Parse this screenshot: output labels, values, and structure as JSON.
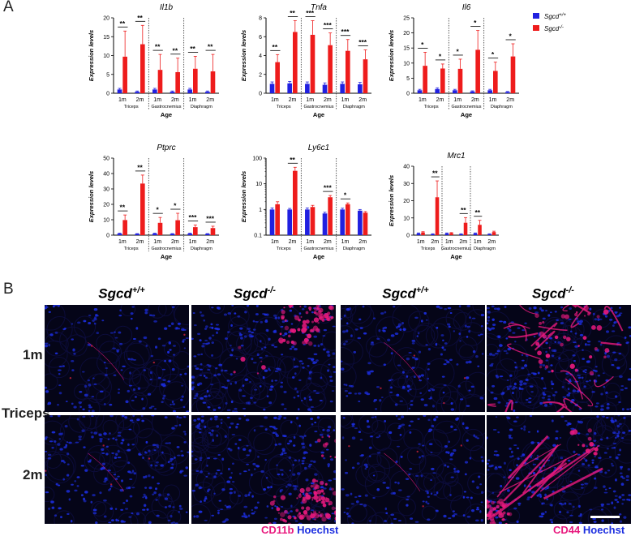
{
  "panel_a_letter": "A",
  "panel_b_letter": "B",
  "legend": {
    "control_gene": "Sgcd",
    "control_sup": "+/+",
    "control_color": "#2020e0",
    "mutant_gene": "Sgcd",
    "mutant_sup": "-/-",
    "mutant_color": "#ee1c1c"
  },
  "chart_data": [
    {
      "type": "bar",
      "title": "Il1b",
      "ylabel": "Expression levels",
      "xlabel": "Age",
      "scale": "linear",
      "ylim": [
        0,
        20
      ],
      "yticks": [
        "0",
        "5",
        "10",
        "15",
        "20"
      ],
      "ytick_values": [
        0,
        5,
        10,
        15,
        20
      ],
      "groups": [
        "Triceps",
        "Gastrocnemius",
        "Diaphragm"
      ],
      "categories": [
        "1m",
        "2m",
        "1m",
        "2m",
        "1m",
        "2m"
      ],
      "series": [
        {
          "name": "Sgcd+/+",
          "values": [
            1.0,
            0.4,
            1.0,
            0.4,
            1.0,
            0.4
          ],
          "errors": [
            0.3,
            0.2,
            0.3,
            0.2,
            0.3,
            0.2
          ]
        },
        {
          "name": "Sgcd-/-",
          "values": [
            9.7,
            13.0,
            6.2,
            5.6,
            6.5,
            5.8
          ],
          "errors": [
            6.8,
            5.0,
            4.1,
            3.7,
            3.3,
            4.5
          ]
        }
      ],
      "significance": [
        "**",
        "**",
        "**",
        "**",
        "**",
        "**"
      ]
    },
    {
      "type": "bar",
      "title": "Tnfa",
      "ylabel": "Expression levels",
      "xlabel": "Age",
      "scale": "linear",
      "ylim": [
        0,
        8
      ],
      "yticks": [
        "0",
        "2",
        "4",
        "6",
        "8"
      ],
      "ytick_values": [
        0,
        2,
        4,
        6,
        8
      ],
      "groups": [
        "Triceps",
        "Gastrocnemius",
        "Diaphragm"
      ],
      "categories": [
        "1m",
        "2m",
        "1m",
        "2m",
        "1m",
        "2m"
      ],
      "series": [
        {
          "name": "Sgcd+/+",
          "values": [
            1.0,
            1.05,
            1.0,
            0.9,
            1.0,
            0.95
          ],
          "errors": [
            0.2,
            0.2,
            0.2,
            0.2,
            0.2,
            0.2
          ]
        },
        {
          "name": "Sgcd-/-",
          "values": [
            3.3,
            6.5,
            6.2,
            5.1,
            4.5,
            3.6
          ],
          "errors": [
            0.8,
            1.2,
            1.5,
            1.3,
            1.2,
            1.0
          ]
        }
      ],
      "significance": [
        "**",
        "**",
        "***",
        "***",
        "***",
        "***"
      ]
    },
    {
      "type": "bar",
      "title": "Il6",
      "ylabel": "Expression levels",
      "xlabel": "Age",
      "scale": "linear",
      "ylim": [
        0,
        25
      ],
      "yticks": [
        "0",
        "5",
        "10",
        "15",
        "20",
        "25"
      ],
      "ytick_values": [
        0,
        5,
        10,
        15,
        20,
        25
      ],
      "groups": [
        "Triceps",
        "Gastrocnemius",
        "Diaphragm"
      ],
      "categories": [
        "1m",
        "2m",
        "1m",
        "2m",
        "1m",
        "2m"
      ],
      "series": [
        {
          "name": "Sgcd+/+",
          "values": [
            1.0,
            1.4,
            1.0,
            0.6,
            1.0,
            0.4
          ],
          "errors": [
            0.3,
            0.4,
            0.3,
            0.2,
            0.3,
            0.2
          ]
        },
        {
          "name": "Sgcd-/-",
          "values": [
            9.1,
            8.2,
            8.1,
            14.4,
            7.4,
            12.2
          ],
          "errors": [
            4.5,
            1.5,
            3.2,
            6.4,
            2.9,
            4.2
          ]
        }
      ],
      "significance": [
        "*",
        "*",
        "*",
        "*",
        "*",
        "*"
      ]
    },
    {
      "type": "bar",
      "title": "Ptprc",
      "ylabel": "Expression levels",
      "xlabel": "Age",
      "scale": "linear",
      "ylim": [
        0,
        50
      ],
      "yticks": [
        "0",
        "10",
        "20",
        "30",
        "40",
        "50"
      ],
      "ytick_values": [
        0,
        10,
        20,
        30,
        40,
        50
      ],
      "groups": [
        "Triceps",
        "Gastrocnemius",
        "Diaphragm"
      ],
      "categories": [
        "1m",
        "2m",
        "1m",
        "2m",
        "1m",
        "2m"
      ],
      "series": [
        {
          "name": "Sgcd+/+",
          "values": [
            1.0,
            0.8,
            1.0,
            0.8,
            1.0,
            0.8
          ],
          "errors": [
            0.3,
            0.2,
            0.3,
            0.2,
            0.3,
            0.2
          ]
        },
        {
          "name": "Sgcd-/-",
          "values": [
            9.8,
            33.5,
            8.0,
            9.7,
            5.2,
            4.6
          ],
          "errors": [
            3.3,
            5.5,
            3.5,
            4.5,
            1.4,
            1.2
          ]
        }
      ],
      "significance": [
        "**",
        "**",
        "*",
        "*",
        "***",
        "***"
      ]
    },
    {
      "type": "bar",
      "title": "Ly6c1",
      "ylabel": "Expression levels",
      "xlabel": "Age",
      "scale": "log",
      "ylim": [
        0.1,
        100
      ],
      "yticks": [
        "0.1",
        "1",
        "10",
        "100"
      ],
      "ytick_values": [
        0.1,
        1,
        10,
        100
      ],
      "groups": [
        "Triceps",
        "Gastrocnemius",
        "Diaphragm"
      ],
      "categories": [
        "1m",
        "2m",
        "1m",
        "2m",
        "1m",
        "2m"
      ],
      "series": [
        {
          "name": "Sgcd+/+",
          "values": [
            1.0,
            1.0,
            1.0,
            0.7,
            1.0,
            0.9
          ],
          "errors": [
            0.15,
            0.1,
            0.15,
            0.08,
            0.12,
            0.1
          ]
        },
        {
          "name": "Sgcd-/-",
          "values": [
            1.6,
            32.0,
            1.25,
            3.0,
            1.6,
            0.75
          ],
          "errors": [
            0.4,
            12.0,
            0.2,
            0.5,
            0.2,
            0.08
          ]
        }
      ],
      "significance": [
        "",
        "**",
        "",
        "***",
        "*",
        ""
      ]
    },
    {
      "type": "bar",
      "title": "Mrc1",
      "ylabel": "Expression levels",
      "xlabel": "Age",
      "scale": "linear",
      "ylim": [
        0,
        40
      ],
      "yticks": [
        "0",
        "10",
        "20",
        "30",
        "40"
      ],
      "ytick_values": [
        0,
        10,
        20,
        30,
        40
      ],
      "groups": [
        "Triceps",
        "Gastrocnemius",
        "Diaphragm"
      ],
      "categories": [
        "1m",
        "2m",
        "1m",
        "2m",
        "1m",
        "2m"
      ],
      "series": [
        {
          "name": "Sgcd+/+",
          "values": [
            1.0,
            0.6,
            1.0,
            0.6,
            1.0,
            0.6
          ],
          "errors": [
            0.3,
            0.2,
            0.3,
            0.2,
            0.3,
            0.2
          ]
        },
        {
          "name": "Sgcd-/-",
          "values": [
            1.6,
            22.0,
            1.2,
            7.2,
            6.0,
            1.8
          ],
          "errors": [
            0.4,
            9.5,
            0.3,
            3.0,
            2.6,
            0.5
          ]
        }
      ],
      "significance": [
        "",
        "**",
        "",
        "**",
        "**",
        ""
      ]
    }
  ],
  "panel_b": {
    "col_headers": [
      {
        "gene": "Sgcd",
        "sup": "+/+"
      },
      {
        "gene": "Sgcd",
        "sup": "-/-"
      },
      {
        "gene": "Sgcd",
        "sup": "+/+"
      },
      {
        "gene": "Sgcd",
        "sup": "-/-"
      }
    ],
    "row_labels": [
      "1m",
      "2m"
    ],
    "tissue_label": "Triceps",
    "stain_left": {
      "marker": "CD11b",
      "nucleus": "Hoechst"
    },
    "stain_right": {
      "marker": "CD44",
      "nucleus": "Hoechst"
    },
    "colors": {
      "marker": "#e8197e",
      "nucleus": "#1c2ee0",
      "background": "#050518"
    }
  }
}
